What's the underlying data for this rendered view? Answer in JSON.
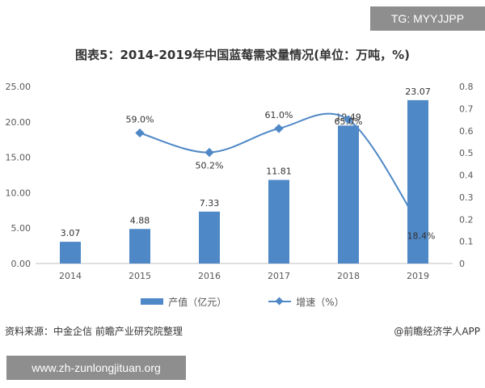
{
  "watermark_tag": "TG: MYYJJPP",
  "footer": {
    "source": "资料来源：中金企信 前瞻产业研究院整理",
    "credit": "@前瞻经济学人APP",
    "url": "www.zh-zunlongjituan.org"
  },
  "colors": {
    "bar": "#4f88c7",
    "line": "#4f88c7",
    "axis": "#bfbfbf",
    "text": "#595959"
  },
  "chart_data": {
    "type": "bar",
    "title": "图表5：2014-2019年中国蓝莓需求量情况(单位：万吨，%)",
    "categories": [
      "2014",
      "2015",
      "2016",
      "2017",
      "2018",
      "2019"
    ],
    "y_ticks": [
      "0.00",
      "5.00",
      "10.00",
      "15.00",
      "20.00",
      "25.00"
    ],
    "y2_ticks": [
      "0",
      "0.1",
      "0.2",
      "0.3",
      "0.4",
      "0.5",
      "0.6",
      "0.7",
      "0.8"
    ],
    "ylim": [
      0,
      25
    ],
    "y2lim": [
      0,
      0.8
    ],
    "grid": false,
    "legend_position": "bottom",
    "series": [
      {
        "name": "产值（亿元）",
        "type": "bar",
        "axis": "left",
        "values": [
          3.07,
          4.88,
          7.33,
          11.81,
          19.49,
          23.07
        ],
        "labels": [
          "3.07",
          "4.88",
          "7.33",
          "11.81",
          "19.49",
          "23.07"
        ]
      },
      {
        "name": "增速（%）",
        "type": "line",
        "axis": "right",
        "values": [
          null,
          0.59,
          0.502,
          0.61,
          0.65,
          0.184
        ],
        "labels": [
          null,
          "59.0%",
          "50.2%",
          "61.0%",
          "65.0%",
          "18.4%"
        ]
      }
    ]
  }
}
